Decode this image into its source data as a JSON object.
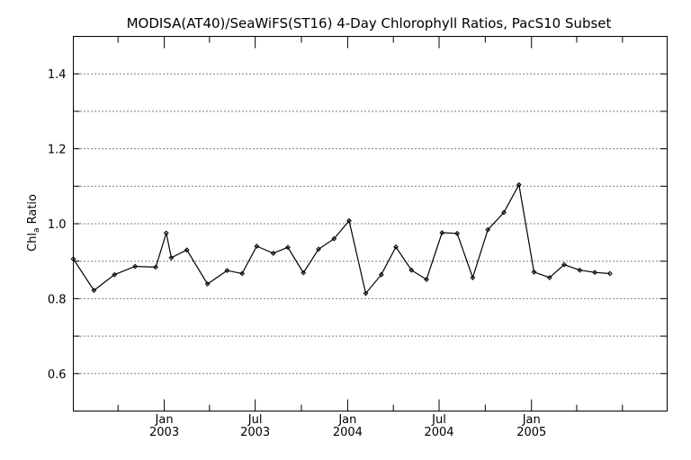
{
  "chart_data": {
    "type": "line",
    "title": "MODISA(AT40)/SeaWiFS(ST16) 4-Day Chlorophyll Ratios, PacS10 Subset",
    "ylabel_main": "Chl",
    "ylabel_sub": "a",
    "ylabel_tail": " Ratio",
    "ylim": [
      0.5,
      1.5
    ],
    "yticks": [
      0.6,
      0.8,
      1.0,
      1.2,
      1.4
    ],
    "ytick_labels": [
      "0.6",
      "0.8",
      "1.0",
      "1.2",
      "1.4"
    ],
    "ygrid": [
      0.6,
      0.7,
      0.8,
      0.9,
      1.0,
      1.1,
      1.2,
      1.3,
      1.4
    ],
    "xlim": [
      "2002-07-04",
      "2005-09-28"
    ],
    "xticks": [
      {
        "date": "2003-01-01",
        "line1": "Jan",
        "line2": "2003"
      },
      {
        "date": "2003-07-01",
        "line1": "Jul",
        "line2": "2003"
      },
      {
        "date": "2004-01-01",
        "line1": "Jan",
        "line2": "2004"
      },
      {
        "date": "2004-07-01",
        "line1": "Jul",
        "line2": "2004"
      },
      {
        "date": "2005-01-01",
        "line1": "Jan",
        "line2": "2005"
      }
    ],
    "xminor": [
      "2002-10-01",
      "2003-04-01",
      "2003-10-01",
      "2004-04-01",
      "2004-10-01",
      "2005-04-01",
      "2005-07-01"
    ],
    "series": [
      {
        "x": [
          "2002-07-04",
          "2002-08-14",
          "2002-09-24",
          "2002-11-04",
          "2002-12-15",
          "2003-01-05",
          "2003-01-15",
          "2003-02-15",
          "2003-03-28",
          "2003-05-06",
          "2003-06-05",
          "2003-07-04",
          "2003-08-06",
          "2003-09-04",
          "2003-10-05",
          "2003-11-04",
          "2003-12-05",
          "2004-01-04",
          "2004-02-06",
          "2004-03-08",
          "2004-04-06",
          "2004-05-07",
          "2004-06-06",
          "2004-07-07",
          "2004-08-06",
          "2004-09-06",
          "2004-10-06",
          "2004-11-07",
          "2004-12-07",
          "2005-01-06",
          "2005-02-06",
          "2005-03-07",
          "2005-04-07",
          "2005-05-07",
          "2005-06-06"
        ],
        "y": [
          0.906,
          0.822,
          0.864,
          0.886,
          0.884,
          0.975,
          0.909,
          0.93,
          0.839,
          0.875,
          0.867,
          0.94,
          0.921,
          0.937,
          0.869,
          0.932,
          0.96,
          1.008,
          0.814,
          0.864,
          0.938,
          0.876,
          0.851,
          0.976,
          0.974,
          0.856,
          0.984,
          1.03,
          1.104,
          0.871,
          0.856,
          0.891,
          0.876,
          0.87,
          0.867
        ]
      }
    ]
  }
}
